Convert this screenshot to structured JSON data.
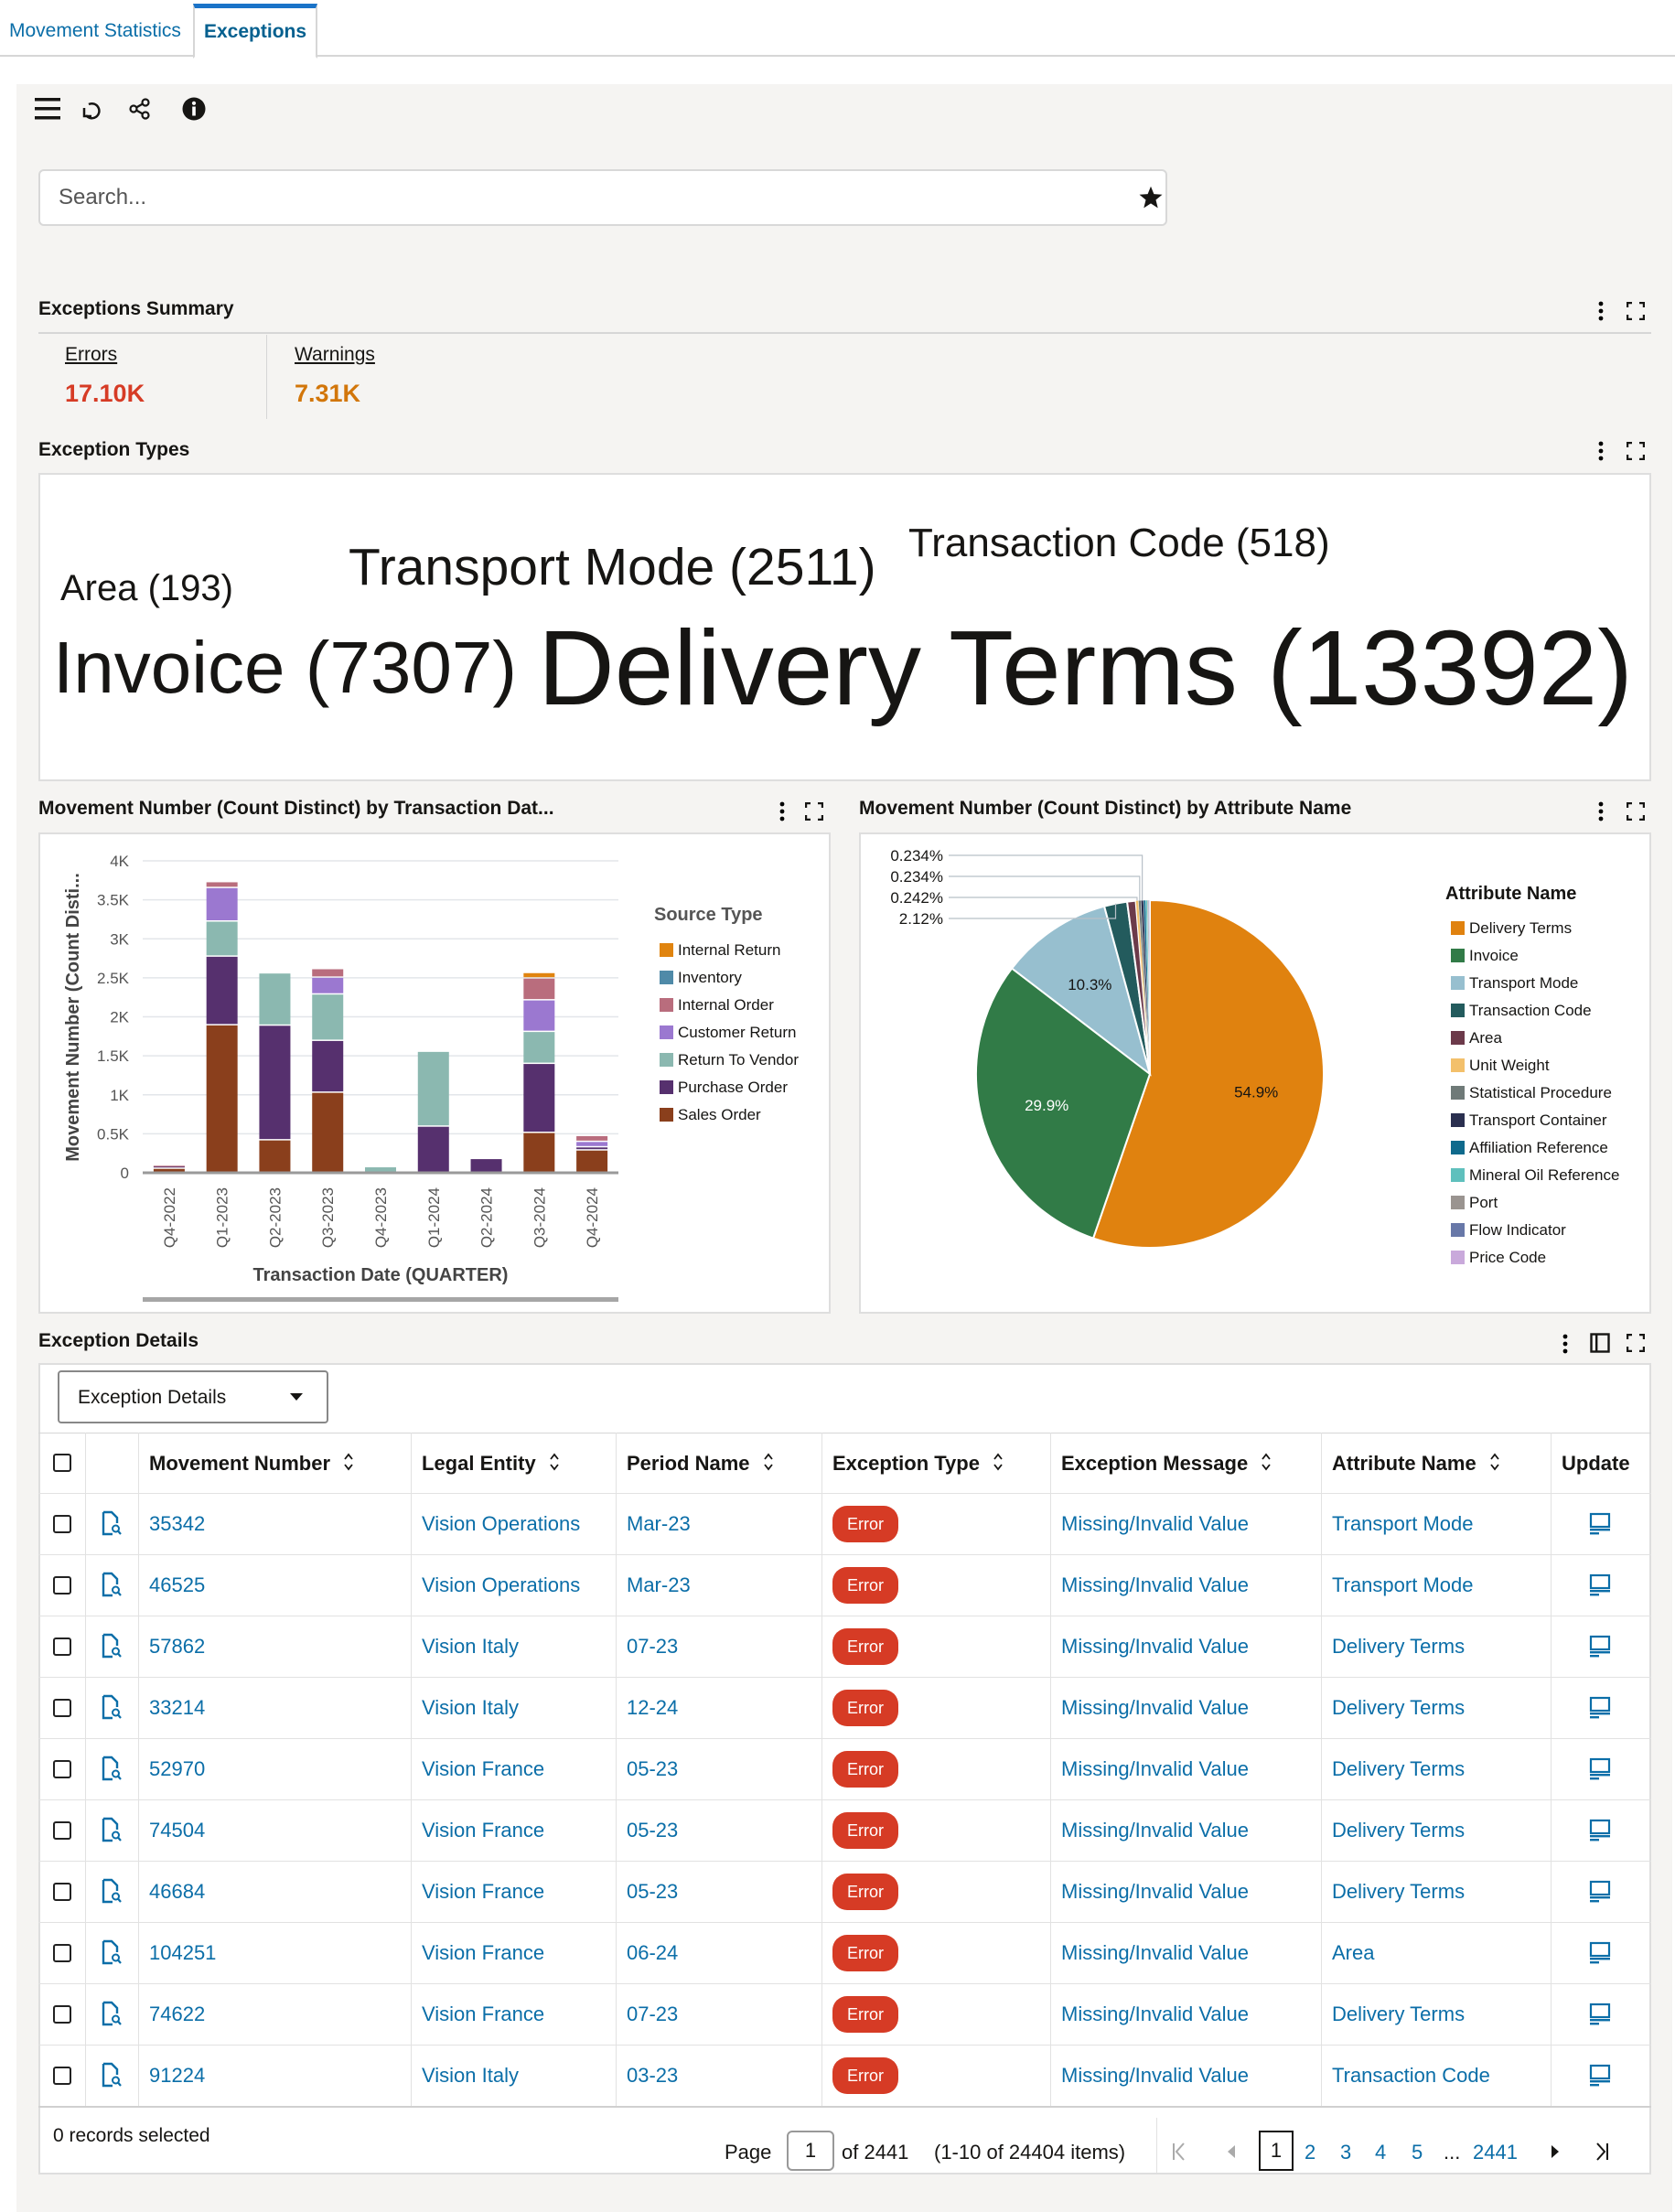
{
  "tabs": [
    {
      "label": "Movement Statistics"
    },
    {
      "label": "Exceptions"
    }
  ],
  "search": {
    "placeholder": "Search..."
  },
  "summary": {
    "title": "Exceptions Summary",
    "errors_label": "Errors",
    "errors_value": "17.10K",
    "warnings_label": "Warnings",
    "warnings_value": "7.31K",
    "errors_color": "#d63b25",
    "warnings_color": "#d2760a"
  },
  "exception_types": {
    "title": "Exception Types",
    "words": [
      {
        "text": "Area (193)",
        "count": 193
      },
      {
        "text": "Transport Mode (2511)",
        "count": 2511
      },
      {
        "text": "Transaction Code (518)",
        "count": 518
      },
      {
        "text": "Invoice (7307)",
        "count": 7307
      },
      {
        "text": "Delivery Terms (13392)",
        "count": 13392
      }
    ]
  },
  "chart_data": [
    {
      "type": "bar",
      "stacked": true,
      "title": "Movement Number (Count Distinct) by Transaction Dat...",
      "xlabel": "Transaction Date (QUARTER)",
      "ylabel": "Movement Number (Count Disti...",
      "ylim": [
        0,
        4000
      ],
      "yticks": [
        "0",
        "0.5K",
        "1K",
        "1.5K",
        "2K",
        "2.5K",
        "3K",
        "3.5K",
        "4K"
      ],
      "categories": [
        "Q4-2022",
        "Q1-2023",
        "Q2-2023",
        "Q3-2023",
        "Q4-2023",
        "Q1-2024",
        "Q2-2024",
        "Q3-2024",
        "Q4-2024"
      ],
      "legend_title": "Source Type",
      "legend": "right",
      "series": [
        {
          "name": "Sales Order",
          "color": "#8a3f1c",
          "values": [
            50,
            1890,
            415,
            1025,
            0,
            0,
            0,
            510,
            285
          ]
        },
        {
          "name": "Purchase Order",
          "color": "#56306e",
          "values": [
            35,
            880,
            1470,
            665,
            0,
            590,
            175,
            885,
            40
          ]
        },
        {
          "name": "Return To Vendor",
          "color": "#8bb8b0",
          "values": [
            0,
            450,
            670,
            595,
            70,
            960,
            0,
            410,
            0
          ]
        },
        {
          "name": "Customer Return",
          "color": "#9b78d0",
          "values": [
            0,
            430,
            0,
            215,
            0,
            0,
            0,
            405,
            70
          ]
        },
        {
          "name": "Internal Order",
          "color": "#b96d7d",
          "values": [
            5,
            75,
            0,
            110,
            0,
            0,
            0,
            280,
            75
          ]
        },
        {
          "name": "Inventory",
          "color": "#4f8aa8",
          "values": [
            0,
            0,
            0,
            0,
            0,
            0,
            0,
            0,
            0
          ]
        },
        {
          "name": "Internal Return",
          "color": "#e0840f",
          "values": [
            0,
            0,
            0,
            0,
            0,
            0,
            0,
            70,
            0
          ]
        }
      ],
      "legend_order": [
        "Internal Return",
        "Inventory",
        "Internal Order",
        "Customer Return",
        "Return To Vendor",
        "Purchase Order",
        "Sales Order"
      ]
    },
    {
      "type": "pie",
      "title": "Movement Number (Count Distinct) by Attribute Name",
      "legend_title": "Attribute Name",
      "legend": "right",
      "slices": [
        {
          "name": "Delivery Terms",
          "value": 54.9,
          "label": "54.9%",
          "color": "#e0820f",
          "label_color": "#161513"
        },
        {
          "name": "Invoice",
          "value": 29.9,
          "label": "29.9%",
          "color": "#317b47",
          "label_color": "#ffffff"
        },
        {
          "name": "Transport Mode",
          "value": 10.3,
          "label": "10.3%",
          "color": "#97bfcf",
          "label_color": "#161513"
        },
        {
          "name": "Transaction Code",
          "value": 2.12,
          "label": "2.12%",
          "color": "#235b5d",
          "outside": true
        },
        {
          "name": "Area",
          "value": 0.79,
          "color": "#6c3a4a"
        },
        {
          "name": "Unit Weight",
          "value": 0.242,
          "label": "0.242%",
          "color": "#f3c06b",
          "outside": true
        },
        {
          "name": "Statistical Procedure",
          "value": 0.234,
          "label": "0.234%",
          "color": "#6f7a78",
          "outside": true
        },
        {
          "name": "Transport Container",
          "value": 0.234,
          "label": "0.234%",
          "color": "#2a2f4f",
          "outside": true
        },
        {
          "name": "Affiliation Reference",
          "value": 0.2,
          "color": "#0f6a8c"
        },
        {
          "name": "Mineral Oil Reference",
          "value": 0.15,
          "color": "#5fc0bd"
        },
        {
          "name": "Port",
          "value": 0.1,
          "color": "#9a9490"
        },
        {
          "name": "Flow Indicator",
          "value": 0.08,
          "color": "#6878a8"
        },
        {
          "name": "Price Code",
          "value": 0.05,
          "color": "#c9a9db"
        }
      ]
    }
  ],
  "details": {
    "title": "Exception Details",
    "view_select": "Exception Details",
    "columns": [
      "Movement Number",
      "Legal Entity",
      "Period Name",
      "Exception Type",
      "Exception Message",
      "Attribute Name",
      "Update"
    ],
    "rows": [
      [
        "35342",
        "Vision Operations",
        "Mar-23",
        "Error",
        "Missing/Invalid Value",
        "Transport Mode"
      ],
      [
        "46525",
        "Vision Operations",
        "Mar-23",
        "Error",
        "Missing/Invalid Value",
        "Transport Mode"
      ],
      [
        "57862",
        "Vision Italy",
        "07-23",
        "Error",
        "Missing/Invalid Value",
        "Delivery Terms"
      ],
      [
        "33214",
        "Vision Italy",
        "12-24",
        "Error",
        "Missing/Invalid Value",
        "Delivery Terms"
      ],
      [
        "52970",
        "Vision France",
        "05-23",
        "Error",
        "Missing/Invalid Value",
        "Delivery Terms"
      ],
      [
        "74504",
        "Vision France",
        "05-23",
        "Error",
        "Missing/Invalid Value",
        "Delivery Terms"
      ],
      [
        "46684",
        "Vision France",
        "05-23",
        "Error",
        "Missing/Invalid Value",
        "Delivery Terms"
      ],
      [
        "104251",
        "Vision France",
        "06-24",
        "Error",
        "Missing/Invalid Value",
        "Area"
      ],
      [
        "74622",
        "Vision France",
        "07-23",
        "Error",
        "Missing/Invalid Value",
        "Delivery Terms"
      ],
      [
        "91224",
        "Vision Italy",
        "03-23",
        "Error",
        "Missing/Invalid Value",
        "Transaction Code"
      ]
    ],
    "records_selected": "0 records selected",
    "pagination": {
      "page_label": "Page",
      "page_value": "1",
      "of_pages": "of 2441",
      "range": "(1-10 of 24404 items)",
      "pages": [
        "1",
        "2",
        "3",
        "4",
        "5",
        "...",
        "2441"
      ]
    }
  }
}
